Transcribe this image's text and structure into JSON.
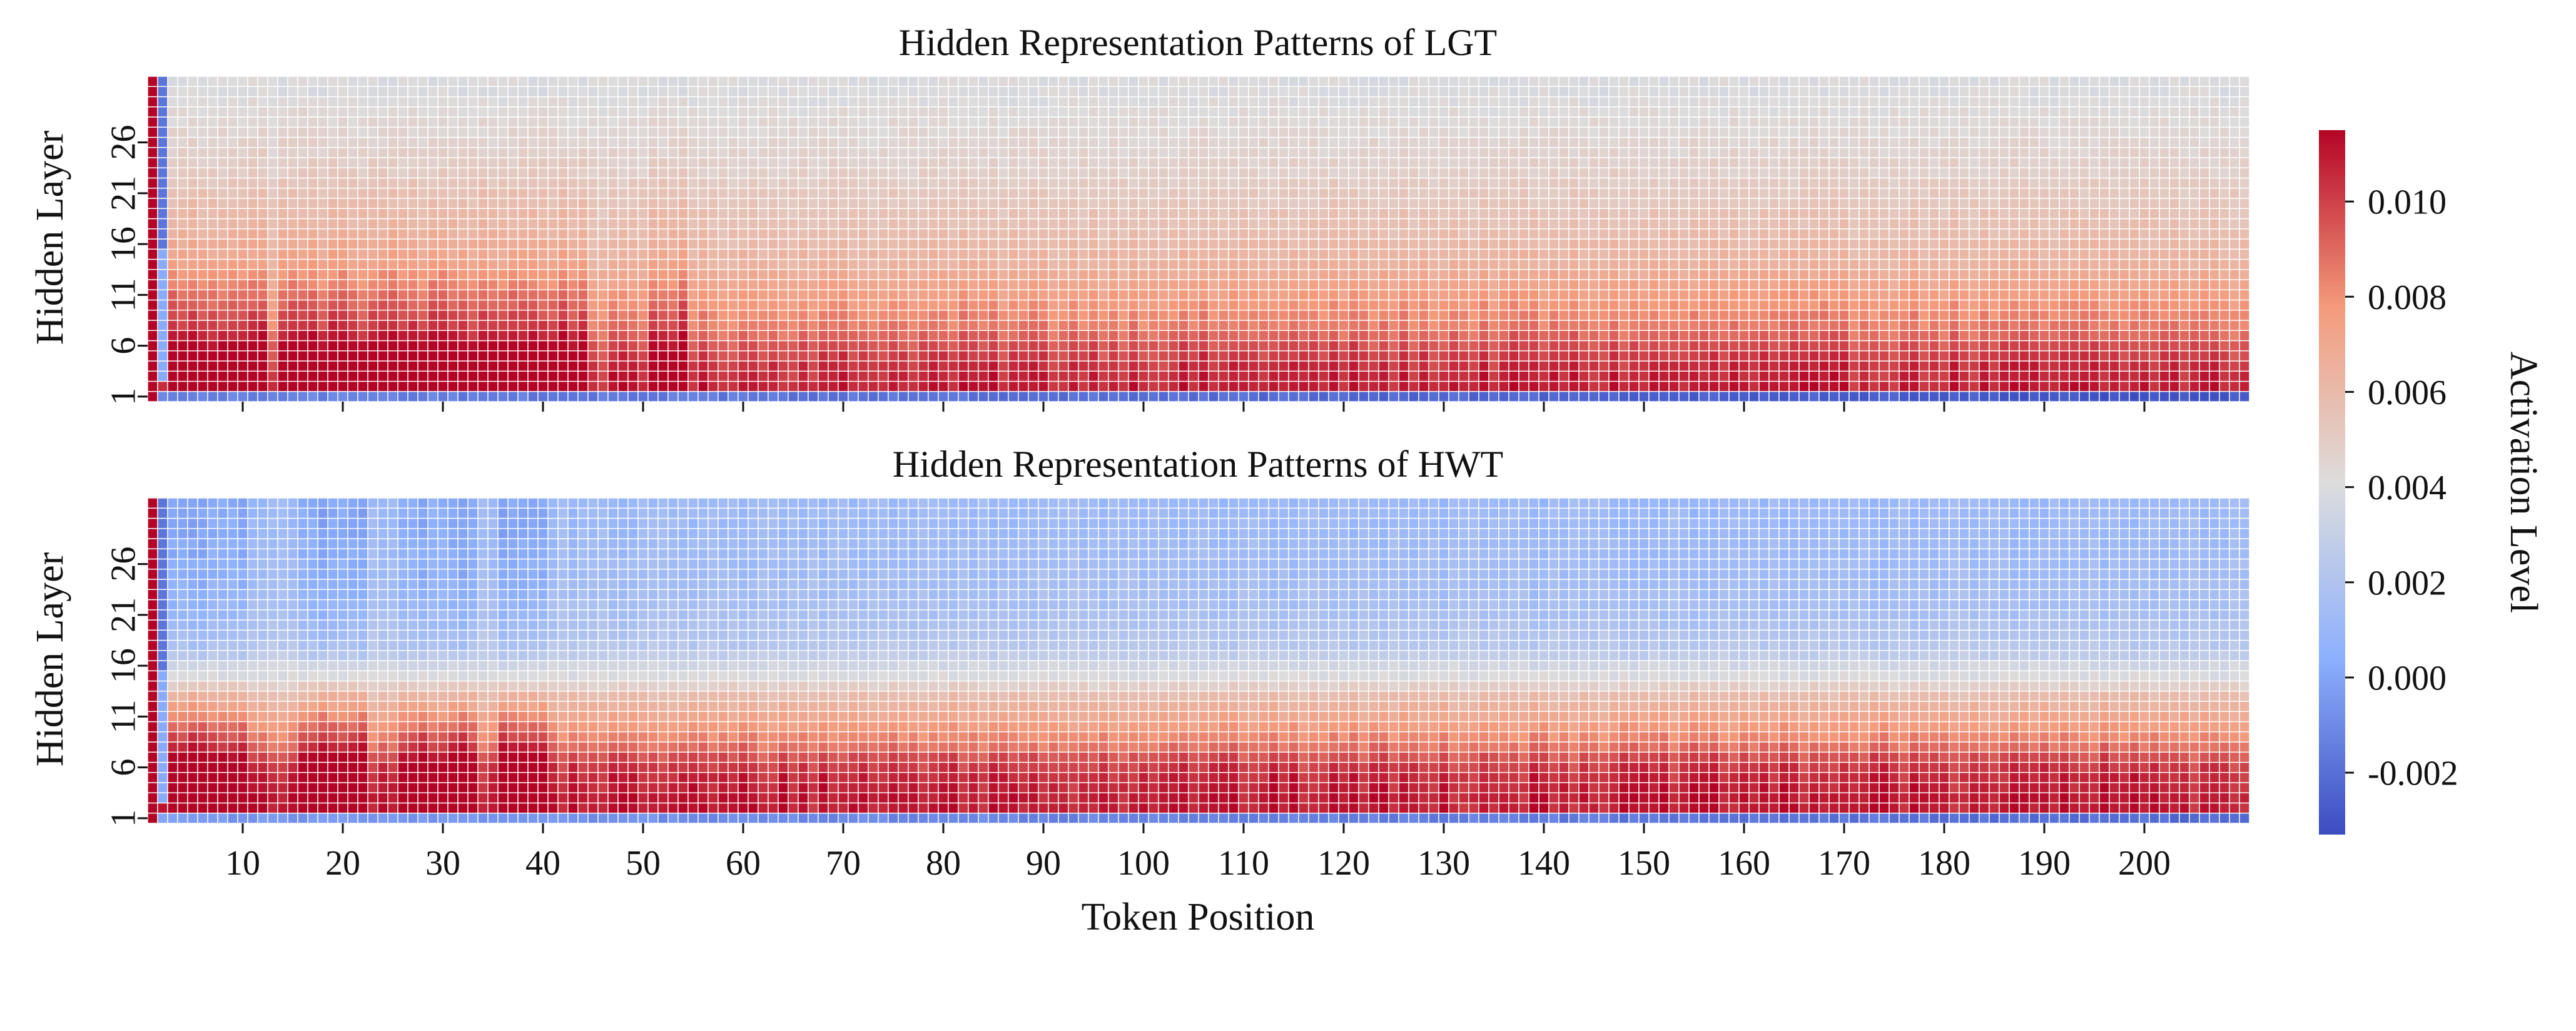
{
  "chart_data": {
    "type": "heatmap",
    "xlabel": "Token Position",
    "x_tick_labels": [
      "10",
      "20",
      "30",
      "40",
      "50",
      "60",
      "70",
      "80",
      "90",
      "100",
      "110",
      "120",
      "130",
      "140",
      "150",
      "160",
      "170",
      "180",
      "190",
      "200"
    ],
    "x_range": [
      0,
      210
    ],
    "n_positions": 210,
    "n_layers": 32,
    "colorbar": {
      "label": "Activation Level",
      "range": [
        -0.0033,
        0.0115
      ],
      "tick_labels": [
        "-0.002",
        "0.000",
        "0.002",
        "0.004",
        "0.006",
        "0.008",
        "0.010"
      ],
      "tick_values": [
        -0.002,
        0.0,
        0.002,
        0.004,
        0.006,
        0.008,
        0.01
      ],
      "colormap": "coolwarm",
      "colors": [
        "#3b4cc0",
        "#8db0fe",
        "#dddcdc",
        "#f49a7b",
        "#b40426"
      ]
    },
    "panels": [
      {
        "title": "Hidden Representation Patterns of LGT",
        "ylabel": "Hidden Layer",
        "y_tick_labels": [
          "1",
          "6",
          "11",
          "16",
          "21",
          "26"
        ],
        "layer_profile": [
          -0.0012,
          0.0108,
          0.0106,
          0.0104,
          0.01,
          0.0096,
          0.009,
          0.0085,
          0.0082,
          0.0078,
          0.0075,
          0.0071,
          0.0068,
          0.0064,
          0.0062,
          0.006,
          0.0058,
          0.0056,
          0.0055,
          0.0053,
          0.0052,
          0.005,
          0.0048,
          0.0047,
          0.0046,
          0.0045,
          0.0044,
          0.0043,
          0.0042,
          0.0041,
          0.004,
          0.004
        ],
        "hot_token_ranges": [
          [
            3,
            12
          ],
          [
            14,
            35
          ],
          [
            36,
            44
          ],
          [
            51,
            54
          ]
        ]
      },
      {
        "title": "Hidden Representation Patterns of HWT",
        "ylabel": "Hidden Layer",
        "y_tick_labels": [
          "1",
          "6",
          "11",
          "16",
          "21",
          "26"
        ],
        "layer_profile": [
          -0.0004,
          0.011,
          0.011,
          0.0108,
          0.0106,
          0.0102,
          0.0096,
          0.0088,
          0.0082,
          0.0076,
          0.007,
          0.0064,
          0.0058,
          0.0048,
          0.004,
          0.0036,
          0.0028,
          0.0024,
          0.0022,
          0.002,
          0.0018,
          0.0017,
          0.0016,
          0.0015,
          0.0014,
          0.0014,
          0.0013,
          0.0013,
          0.0012,
          0.0012,
          0.0012,
          0.0012
        ],
        "hot_token_ranges": [
          [
            3,
            10
          ],
          [
            16,
            22
          ],
          [
            26,
            33
          ],
          [
            36,
            40
          ]
        ]
      }
    ]
  }
}
